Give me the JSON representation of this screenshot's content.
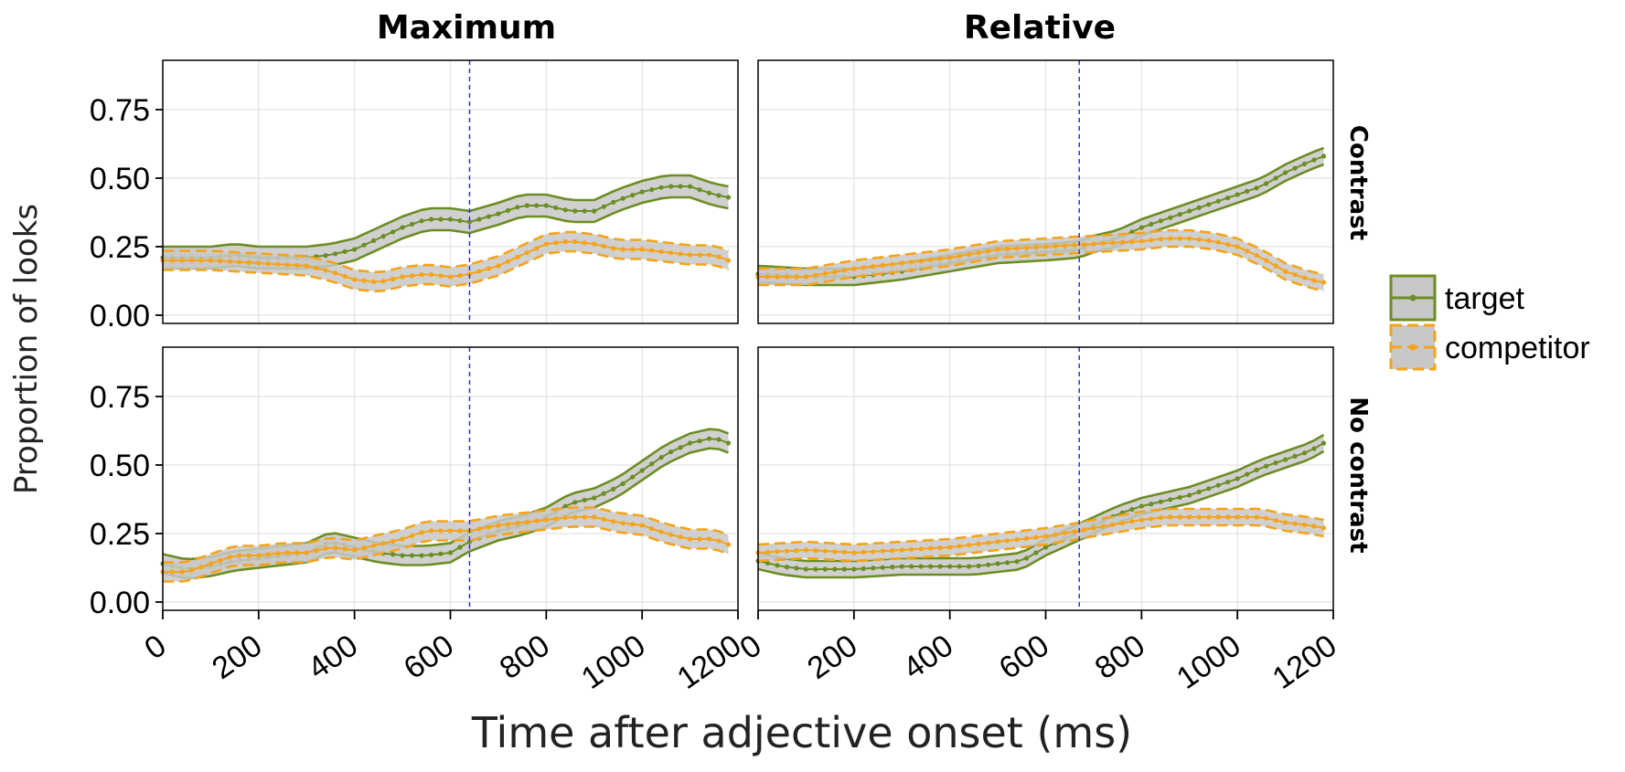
{
  "chart_data": {
    "type": "line",
    "xlabel": "Time after adjective onset (ms)",
    "ylabel": "Proportion of looks",
    "xlim": [
      0,
      1200
    ],
    "ylim": [
      -0.03,
      0.93
    ],
    "x_ticks": [
      "0",
      "200",
      "400",
      "600",
      "800",
      "1000",
      "1200"
    ],
    "y_ticks": [
      "0.00",
      "0.25",
      "0.50",
      "0.75"
    ],
    "grid": true,
    "legend_position": "right",
    "legend": [
      "target",
      "competitor"
    ],
    "colors": {
      "target": "#6b8e23",
      "competitor": "#f5a31a",
      "ribbon": "#c8c8c8",
      "reference_line": "#3333cc"
    },
    "col_titles": [
      "Maximum",
      "Relative"
    ],
    "row_titles": [
      "Contrast",
      "No contrast"
    ],
    "panels": [
      {
        "row": 0,
        "col": 0,
        "vline": 640,
        "series": [
          {
            "name": "target",
            "ribbon_halfwidth": 0.04,
            "points": [
              [
                0,
                0.21
              ],
              [
                100,
                0.21
              ],
              [
                150,
                0.22
              ],
              [
                200,
                0.21
              ],
              [
                250,
                0.21
              ],
              [
                300,
                0.21
              ],
              [
                350,
                0.22
              ],
              [
                400,
                0.24
              ],
              [
                450,
                0.28
              ],
              [
                500,
                0.32
              ],
              [
                550,
                0.35
              ],
              [
                600,
                0.35
              ],
              [
                640,
                0.34
              ],
              [
                700,
                0.37
              ],
              [
                750,
                0.4
              ],
              [
                800,
                0.4
              ],
              [
                850,
                0.38
              ],
              [
                900,
                0.38
              ],
              [
                950,
                0.42
              ],
              [
                1000,
                0.45
              ],
              [
                1050,
                0.47
              ],
              [
                1100,
                0.47
              ],
              [
                1150,
                0.44
              ],
              [
                1180,
                0.43
              ]
            ]
          },
          {
            "name": "competitor",
            "ribbon_halfwidth": 0.035,
            "points": [
              [
                0,
                0.2
              ],
              [
                100,
                0.2
              ],
              [
                200,
                0.19
              ],
              [
                300,
                0.18
              ],
              [
                350,
                0.16
              ],
              [
                400,
                0.13
              ],
              [
                450,
                0.12
              ],
              [
                500,
                0.14
              ],
              [
                550,
                0.15
              ],
              [
                600,
                0.14
              ],
              [
                640,
                0.15
              ],
              [
                700,
                0.18
              ],
              [
                750,
                0.22
              ],
              [
                800,
                0.26
              ],
              [
                850,
                0.27
              ],
              [
                900,
                0.26
              ],
              [
                950,
                0.24
              ],
              [
                1000,
                0.24
              ],
              [
                1050,
                0.23
              ],
              [
                1100,
                0.22
              ],
              [
                1150,
                0.22
              ],
              [
                1180,
                0.2
              ]
            ]
          }
        ]
      },
      {
        "row": 0,
        "col": 1,
        "vline": 670,
        "series": [
          {
            "name": "target",
            "ribbon_halfwidth": 0.03,
            "points": [
              [
                0,
                0.15
              ],
              [
                100,
                0.14
              ],
              [
                200,
                0.14
              ],
              [
                300,
                0.16
              ],
              [
                400,
                0.19
              ],
              [
                500,
                0.22
              ],
              [
                600,
                0.23
              ],
              [
                670,
                0.24
              ],
              [
                700,
                0.26
              ],
              [
                750,
                0.28
              ],
              [
                800,
                0.32
              ],
              [
                850,
                0.35
              ],
              [
                900,
                0.38
              ],
              [
                950,
                0.41
              ],
              [
                1000,
                0.44
              ],
              [
                1050,
                0.47
              ],
              [
                1100,
                0.52
              ],
              [
                1150,
                0.56
              ],
              [
                1180,
                0.58
              ]
            ]
          },
          {
            "name": "competitor",
            "ribbon_halfwidth": 0.03,
            "points": [
              [
                0,
                0.14
              ],
              [
                100,
                0.14
              ],
              [
                200,
                0.17
              ],
              [
                300,
                0.19
              ],
              [
                400,
                0.21
              ],
              [
                500,
                0.24
              ],
              [
                600,
                0.25
              ],
              [
                700,
                0.26
              ],
              [
                800,
                0.27
              ],
              [
                850,
                0.28
              ],
              [
                900,
                0.28
              ],
              [
                950,
                0.27
              ],
              [
                1000,
                0.25
              ],
              [
                1050,
                0.21
              ],
              [
                1100,
                0.16
              ],
              [
                1150,
                0.13
              ],
              [
                1180,
                0.12
              ]
            ]
          }
        ]
      },
      {
        "row": 1,
        "col": 0,
        "vline": 640,
        "series": [
          {
            "name": "target",
            "ribbon_halfwidth": 0.035,
            "points": [
              [
                0,
                0.14
              ],
              [
                50,
                0.12
              ],
              [
                100,
                0.13
              ],
              [
                150,
                0.15
              ],
              [
                200,
                0.16
              ],
              [
                250,
                0.17
              ],
              [
                300,
                0.18
              ],
              [
                350,
                0.22
              ],
              [
                400,
                0.2
              ],
              [
                450,
                0.18
              ],
              [
                500,
                0.17
              ],
              [
                550,
                0.17
              ],
              [
                600,
                0.18
              ],
              [
                640,
                0.22
              ],
              [
                700,
                0.26
              ],
              [
                750,
                0.28
              ],
              [
                800,
                0.31
              ],
              [
                850,
                0.36
              ],
              [
                900,
                0.38
              ],
              [
                950,
                0.42
              ],
              [
                1000,
                0.48
              ],
              [
                1050,
                0.54
              ],
              [
                1100,
                0.58
              ],
              [
                1150,
                0.6
              ],
              [
                1180,
                0.58
              ]
            ]
          },
          {
            "name": "competitor",
            "ribbon_halfwidth": 0.035,
            "points": [
              [
                0,
                0.11
              ],
              [
                50,
                0.11
              ],
              [
                100,
                0.14
              ],
              [
                150,
                0.17
              ],
              [
                200,
                0.17
              ],
              [
                250,
                0.18
              ],
              [
                300,
                0.18
              ],
              [
                350,
                0.2
              ],
              [
                400,
                0.19
              ],
              [
                450,
                0.21
              ],
              [
                500,
                0.23
              ],
              [
                550,
                0.26
              ],
              [
                600,
                0.26
              ],
              [
                640,
                0.26
              ],
              [
                700,
                0.28
              ],
              [
                750,
                0.29
              ],
              [
                800,
                0.3
              ],
              [
                850,
                0.31
              ],
              [
                900,
                0.31
              ],
              [
                950,
                0.29
              ],
              [
                1000,
                0.28
              ],
              [
                1050,
                0.25
              ],
              [
                1100,
                0.23
              ],
              [
                1150,
                0.23
              ],
              [
                1180,
                0.21
              ]
            ]
          }
        ]
      },
      {
        "row": 1,
        "col": 1,
        "vline": 670,
        "series": [
          {
            "name": "target",
            "ribbon_halfwidth": 0.03,
            "points": [
              [
                0,
                0.15
              ],
              [
                50,
                0.13
              ],
              [
                100,
                0.12
              ],
              [
                200,
                0.12
              ],
              [
                300,
                0.13
              ],
              [
                400,
                0.13
              ],
              [
                450,
                0.13
              ],
              [
                500,
                0.14
              ],
              [
                550,
                0.15
              ],
              [
                600,
                0.2
              ],
              [
                650,
                0.24
              ],
              [
                700,
                0.28
              ],
              [
                750,
                0.32
              ],
              [
                800,
                0.35
              ],
              [
                850,
                0.37
              ],
              [
                900,
                0.39
              ],
              [
                950,
                0.42
              ],
              [
                1000,
                0.45
              ],
              [
                1050,
                0.49
              ],
              [
                1100,
                0.52
              ],
              [
                1150,
                0.55
              ],
              [
                1180,
                0.58
              ]
            ]
          },
          {
            "name": "competitor",
            "ribbon_halfwidth": 0.03,
            "points": [
              [
                0,
                0.18
              ],
              [
                100,
                0.19
              ],
              [
                200,
                0.18
              ],
              [
                300,
                0.19
              ],
              [
                400,
                0.2
              ],
              [
                500,
                0.22
              ],
              [
                600,
                0.24
              ],
              [
                670,
                0.26
              ],
              [
                700,
                0.27
              ],
              [
                800,
                0.3
              ],
              [
                850,
                0.31
              ],
              [
                900,
                0.31
              ],
              [
                950,
                0.31
              ],
              [
                1000,
                0.31
              ],
              [
                1050,
                0.31
              ],
              [
                1100,
                0.29
              ],
              [
                1150,
                0.28
              ],
              [
                1180,
                0.27
              ]
            ]
          }
        ]
      }
    ]
  }
}
